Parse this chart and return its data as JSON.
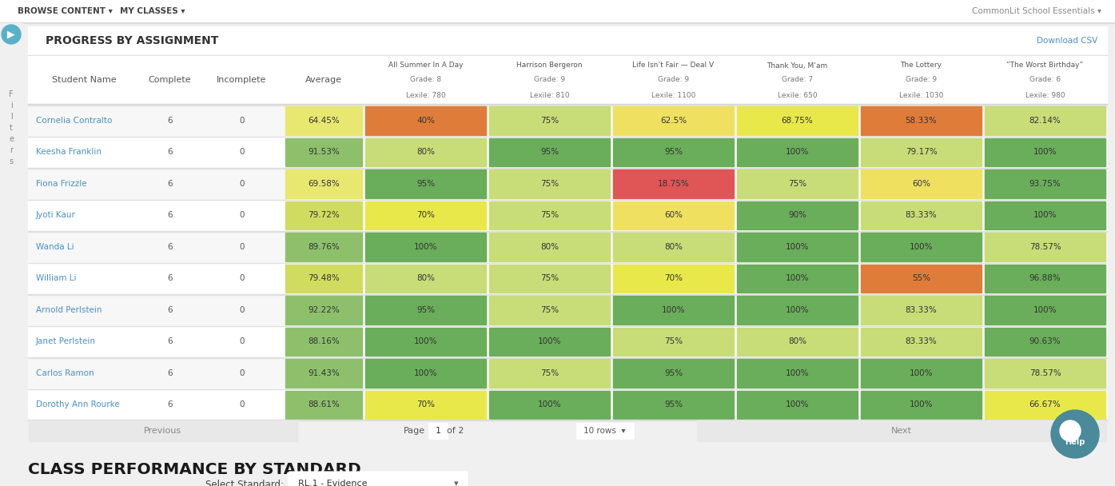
{
  "title": "PROGRESS BY ASSIGNMENT",
  "download_csv": "Download CSV",
  "score_titles": [
    "All Summer In A Day",
    "Harrison Bergeron",
    "Life Isn’t Fair — Deal V",
    "Thank You, M’am",
    "The Lottery",
    "“The Worst Birthday”"
  ],
  "score_grades": [
    "Grade: 8",
    "Grade: 9",
    "Grade: 9",
    "Grade: 7",
    "Grade: 9",
    "Grade: 6"
  ],
  "score_lexile": [
    "Lexile: 780",
    "Lexile: 810",
    "Lexile: 1100",
    "Lexile: 650",
    "Lexile: 1030",
    "Lexile: 980"
  ],
  "students": [
    {
      "name": "Cornelia Contralto",
      "complete": 6,
      "incomplete": 0,
      "average": "64.45%",
      "scores": [
        "40%",
        "75%",
        "62.5%",
        "68.75%",
        "58.33%",
        "82.14%"
      ]
    },
    {
      "name": "Keesha Franklin",
      "complete": 6,
      "incomplete": 0,
      "average": "91.53%",
      "scores": [
        "80%",
        "95%",
        "95%",
        "100%",
        "79.17%",
        "100%"
      ]
    },
    {
      "name": "Fiona Frizzle",
      "complete": 6,
      "incomplete": 0,
      "average": "69.58%",
      "scores": [
        "95%",
        "75%",
        "18.75%",
        "75%",
        "60%",
        "93.75%"
      ]
    },
    {
      "name": "Jyoti Kaur",
      "complete": 6,
      "incomplete": 0,
      "average": "79.72%",
      "scores": [
        "70%",
        "75%",
        "60%",
        "90%",
        "83.33%",
        "100%"
      ]
    },
    {
      "name": "Wanda Li",
      "complete": 6,
      "incomplete": 0,
      "average": "89.76%",
      "scores": [
        "100%",
        "80%",
        "80%",
        "100%",
        "100%",
        "78.57%"
      ]
    },
    {
      "name": "William Li",
      "complete": 6,
      "incomplete": 0,
      "average": "79.48%",
      "scores": [
        "80%",
        "75%",
        "70%",
        "100%",
        "55%",
        "96.88%"
      ]
    },
    {
      "name": "Arnold Perlstein",
      "complete": 6,
      "incomplete": 0,
      "average": "92.22%",
      "scores": [
        "95%",
        "75%",
        "100%",
        "100%",
        "83.33%",
        "100%"
      ]
    },
    {
      "name": "Janet Perlstein",
      "complete": 6,
      "incomplete": 0,
      "average": "88.16%",
      "scores": [
        "100%",
        "100%",
        "75%",
        "80%",
        "83.33%",
        "90.63%"
      ]
    },
    {
      "name": "Carlos Ramon",
      "complete": 6,
      "incomplete": 0,
      "average": "91.43%",
      "scores": [
        "100%",
        "75%",
        "95%",
        "100%",
        "100%",
        "78.57%"
      ]
    },
    {
      "name": "Dorothy Ann Rourke",
      "complete": 6,
      "incomplete": 0,
      "average": "88.61%",
      "scores": [
        "70%",
        "100%",
        "95%",
        "100%",
        "100%",
        "66.67%"
      ]
    }
  ],
  "bottom_title": "CLASS PERFORMANCE BY STANDARD",
  "select_standard_label": "Select Standard:",
  "select_standard_value": "RL.1 - Evidence",
  "page_bg": "#f0f0f0",
  "nav_bg": "#ffffff",
  "table_border": "#dddddd",
  "link_color": "#4a90c4",
  "help_circle_color": "#4a8a9a"
}
